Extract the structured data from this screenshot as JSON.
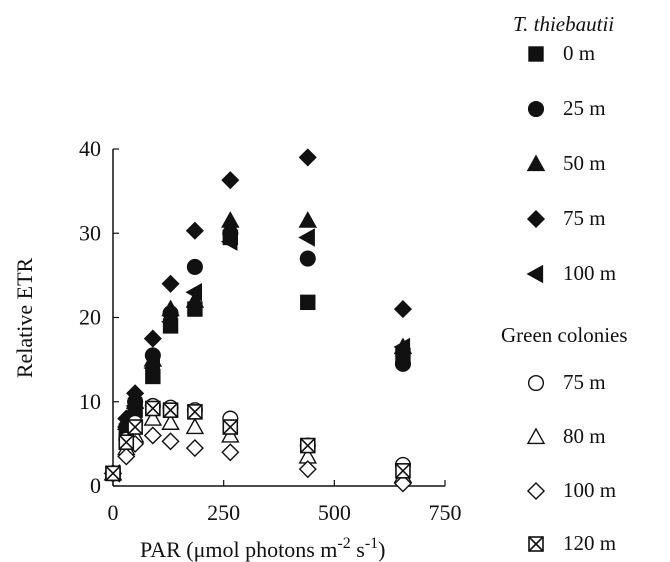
{
  "chart_data": {
    "type": "scatter",
    "xlabel": "PAR (µmol photons m⁻² s⁻¹)",
    "xlabel_parts": {
      "main": "PAR (μmol photons m",
      "sup1": "-2",
      "mid": " s",
      "sup2": "-1",
      "end": ")"
    },
    "ylabel": "Relative ETR",
    "xlim": [
      0,
      750
    ],
    "ylim": [
      0,
      40
    ],
    "xticks": [
      "0",
      "250",
      "500",
      "750"
    ],
    "yticks": [
      "0",
      "10",
      "20",
      "30",
      "40"
    ],
    "grid": false,
    "legend_placement": "right",
    "legend_groups": [
      "T. thiebautii",
      "Green colonies"
    ],
    "series": [
      {
        "name": "0 m",
        "group": 0,
        "marker": "square-filled",
        "x": [
          0,
          30,
          50,
          90,
          130,
          185,
          265,
          440,
          655
        ],
        "y": [
          1.5,
          6.5,
          9,
          13,
          19,
          21,
          29.5,
          21.8,
          15.5
        ]
      },
      {
        "name": "25 m",
        "group": 0,
        "marker": "circle-filled",
        "x": [
          0,
          30,
          50,
          90,
          130,
          185,
          265,
          440,
          655
        ],
        "y": [
          1.5,
          7,
          10,
          15.5,
          20.5,
          26,
          30,
          27,
          14.5
        ]
      },
      {
        "name": "50 m",
        "group": 0,
        "marker": "triangle-filled",
        "x": [
          0,
          30,
          50,
          90,
          130,
          185,
          265,
          440,
          655
        ],
        "y": [
          1.5,
          7.5,
          10,
          15,
          21,
          22,
          31.5,
          31.5,
          16.5
        ]
      },
      {
        "name": "75 m",
        "group": 0,
        "marker": "diamond-filled",
        "x": [
          0,
          30,
          50,
          90,
          130,
          185,
          265,
          440,
          655
        ],
        "y": [
          1.5,
          8,
          11,
          17.5,
          24,
          30.3,
          36.3,
          39,
          21
        ]
      },
      {
        "name": "100 m",
        "group": 0,
        "marker": "lefttriangle-filled",
        "x": [
          0,
          30,
          50,
          90,
          130,
          185,
          265,
          440,
          655
        ],
        "y": [
          1.5,
          7,
          9.5,
          14,
          19.5,
          23,
          29,
          29.5,
          16.5
        ]
      },
      {
        "name": "75 m",
        "group": 1,
        "marker": "circle-open",
        "x": [
          0,
          30,
          50,
          90,
          130,
          185,
          265,
          440,
          655
        ],
        "y": [
          1.5,
          5.5,
          7.5,
          9.5,
          9.3,
          9,
          8,
          4.8,
          2.5
        ]
      },
      {
        "name": "80 m",
        "group": 1,
        "marker": "triangle-open",
        "x": [
          0,
          30,
          50,
          90,
          130,
          185,
          265,
          440,
          655
        ],
        "y": [
          1.5,
          4.5,
          6,
          8,
          7.5,
          7,
          6,
          3.5,
          1.2
        ]
      },
      {
        "name": "100 m",
        "group": 1,
        "marker": "diamond-open",
        "x": [
          0,
          30,
          50,
          90,
          130,
          185,
          265,
          440,
          655
        ],
        "y": [
          1.5,
          3.5,
          5,
          6,
          5.3,
          4.5,
          4,
          2,
          0.3
        ]
      },
      {
        "name": "120 m",
        "group": 1,
        "marker": "xsquare",
        "x": [
          0,
          30,
          50,
          90,
          130,
          185,
          265,
          440,
          655
        ],
        "y": [
          1.5,
          5.2,
          7,
          9.2,
          9,
          8.8,
          7,
          4.8,
          1.8
        ]
      }
    ]
  }
}
